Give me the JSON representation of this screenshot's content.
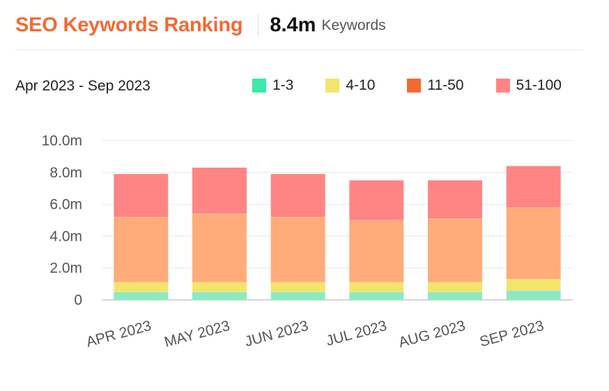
{
  "header": {
    "title": "SEO Keywords Ranking",
    "total_value": "8.4m",
    "total_label": "Keywords"
  },
  "date_range": "Apr 2023 - Sep 2023",
  "legend": [
    {
      "label": "1-3",
      "color": "#3ee8a6"
    },
    {
      "label": "4-10",
      "color": "#f4e46a"
    },
    {
      "label": "11-50",
      "color": "#f26a33"
    },
    {
      "label": "51-100",
      "color": "#ff8585"
    }
  ],
  "chart_data": {
    "type": "bar",
    "stacked": true,
    "categories": [
      "APR 2023",
      "MAY 2023",
      "JUN 2023",
      "JUL 2023",
      "AUG 2023",
      "SEP 2023"
    ],
    "series": [
      {
        "name": "1-3",
        "color": "#8ee9c3",
        "values": [
          0.5,
          0.5,
          0.5,
          0.5,
          0.5,
          0.6
        ]
      },
      {
        "name": "4-10",
        "color": "#f4e46a",
        "values": [
          0.6,
          0.6,
          0.6,
          0.6,
          0.6,
          0.7
        ]
      },
      {
        "name": "11-50",
        "color": "#ffac7a",
        "values": [
          4.1,
          4.3,
          4.1,
          3.9,
          4.0,
          4.5
        ]
      },
      {
        "name": "51-100",
        "color": "#ff8585",
        "values": [
          2.7,
          2.9,
          2.7,
          2.5,
          2.4,
          2.6
        ]
      }
    ],
    "y_ticks": [
      "0",
      "2.0m",
      "4.0m",
      "6.0m",
      "8.0m",
      "10.0m"
    ],
    "ylim": [
      0,
      10
    ],
    "grid": true
  }
}
